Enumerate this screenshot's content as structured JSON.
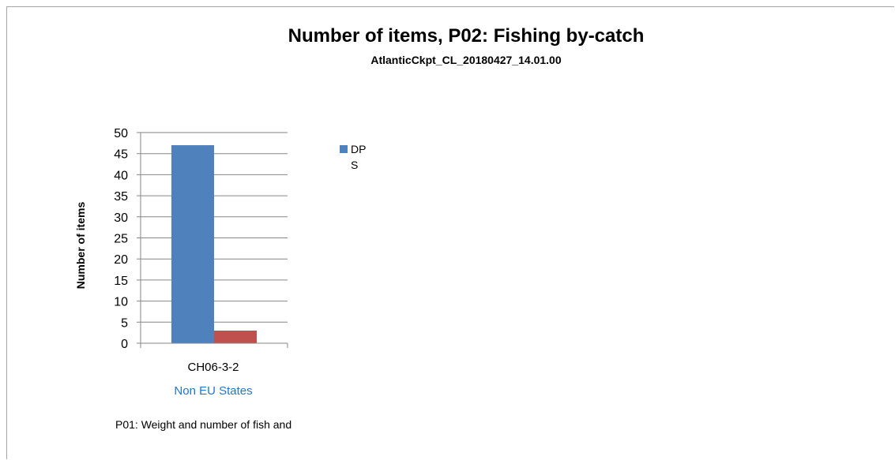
{
  "chart_data": {
    "type": "bar",
    "title": "Number of items, P02: Fishing by-catch",
    "subtitle": "AtlanticCkpt_CL_20180427_14.01.00",
    "ylabel": "Number of items",
    "xlabel": "",
    "ylim": [
      0,
      50
    ],
    "yticks": [
      0,
      5,
      10,
      15,
      20,
      25,
      30,
      35,
      40,
      45,
      50
    ],
    "grid": true,
    "legend_position": "right",
    "group_label": "Non EU States",
    "categories": [
      "CH06-3-2"
    ],
    "series": [
      {
        "name": "DPS",
        "legend_text": [
          "DP",
          "S"
        ],
        "values": [
          47
        ],
        "color": "#4f81bd"
      },
      {
        "values": [
          3
        ],
        "color": "#c0504d"
      }
    ]
  },
  "footnote": "P01: Weight and number of fish and"
}
